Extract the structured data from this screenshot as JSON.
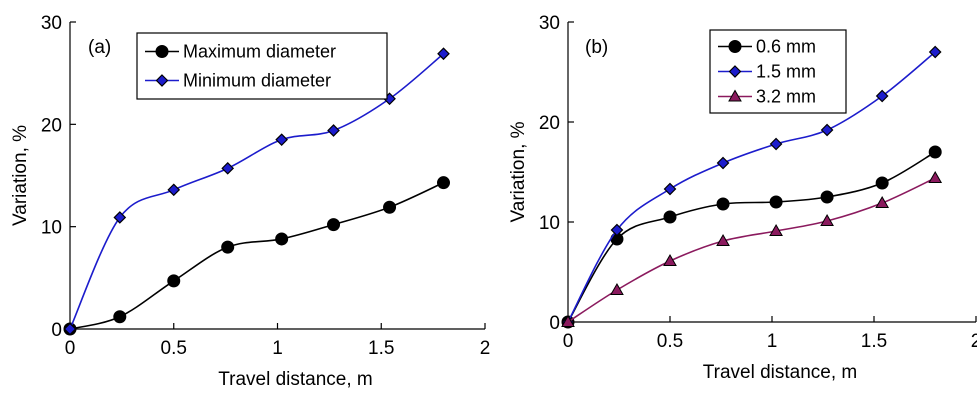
{
  "chart_data": [
    {
      "type": "line",
      "panel_label": "(a)",
      "xlabel": "Travel distance, m",
      "ylabel": "Variation, %",
      "xlim": [
        0,
        2
      ],
      "ylim": [
        0,
        30
      ],
      "xticks": [
        0,
        0.5,
        1,
        1.5,
        2
      ],
      "xtick_labels": [
        "0",
        "0.5",
        "1",
        "1.5",
        "2"
      ],
      "yticks": [
        0,
        10,
        20,
        30
      ],
      "ytick_labels": [
        "0",
        "10",
        "20",
        "30"
      ],
      "grid": false,
      "legend_position": "top-right",
      "series": [
        {
          "name": "Maximum diameter",
          "color": "#000000",
          "marker": "circle",
          "x": [
            0,
            0.24,
            0.5,
            0.76,
            1.02,
            1.27,
            1.54,
            1.8
          ],
          "y": [
            0,
            1.2,
            4.7,
            8.0,
            8.8,
            10.2,
            11.9,
            14.3
          ]
        },
        {
          "name": "Minimum diameter",
          "color": "#1c1ccc",
          "marker": "diamond",
          "x": [
            0,
            0.24,
            0.5,
            0.76,
            1.02,
            1.27,
            1.54,
            1.8
          ],
          "y": [
            0,
            10.9,
            13.6,
            15.7,
            18.5,
            19.4,
            22.5,
            26.9
          ]
        }
      ]
    },
    {
      "type": "line",
      "panel_label": "(b)",
      "xlabel": "Travel distance, m",
      "ylabel": "Variation, %",
      "xlim": [
        0,
        2
      ],
      "ylim": [
        0,
        30
      ],
      "xticks": [
        0,
        0.5,
        1,
        1.5,
        2
      ],
      "xtick_labels": [
        "0",
        "0.5",
        "1",
        "1.5",
        "2"
      ],
      "yticks": [
        0,
        10,
        20,
        30
      ],
      "ytick_labels": [
        "0",
        "10",
        "20",
        "30"
      ],
      "grid": false,
      "legend_position": "top-center",
      "series": [
        {
          "name": "0.6 mm",
          "color": "#000000",
          "marker": "circle",
          "x": [
            0,
            0.24,
            0.5,
            0.76,
            1.02,
            1.27,
            1.54,
            1.8
          ],
          "y": [
            0,
            8.3,
            10.5,
            11.8,
            12.0,
            12.5,
            13.9,
            17.0
          ]
        },
        {
          "name": "1.5 mm",
          "color": "#1c1ccc",
          "marker": "diamond",
          "x": [
            0,
            0.24,
            0.5,
            0.76,
            1.02,
            1.27,
            1.54,
            1.8
          ],
          "y": [
            0,
            9.2,
            13.3,
            15.9,
            17.8,
            19.2,
            22.6,
            27.0
          ]
        },
        {
          "name": "3.2 mm",
          "color": "#8b1a5e",
          "marker": "triangle",
          "x": [
            0,
            0.24,
            0.5,
            0.76,
            1.02,
            1.27,
            1.54,
            1.8
          ],
          "y": [
            0,
            3.2,
            6.1,
            8.1,
            9.1,
            10.1,
            11.9,
            14.4
          ]
        }
      ]
    }
  ]
}
